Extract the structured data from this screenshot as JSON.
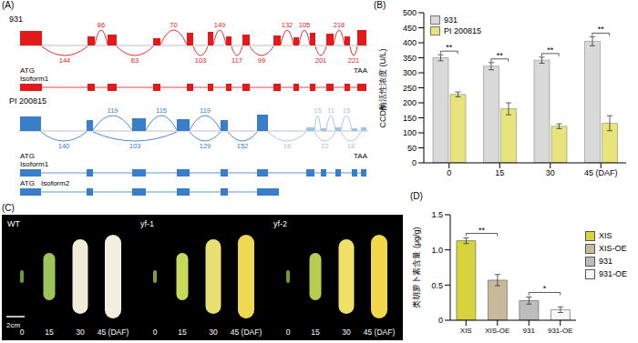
{
  "panel_labels": [
    "(A)",
    "(B)",
    "(C)",
    "(D)"
  ],
  "panel_A": {
    "tracks": [
      {
        "sample": "931",
        "color": "#e31a1c",
        "junctions": [
          {
            "label": 144,
            "side": "below"
          },
          {
            "label": 86,
            "side": "above"
          },
          {
            "label": 63,
            "side": "below"
          },
          {
            "label": 70,
            "side": "above"
          },
          {
            "label": 103,
            "side": "below"
          },
          {
            "label": 149,
            "side": "above"
          },
          {
            "label": 117,
            "side": "below"
          },
          {
            "label": 99,
            "side": "below"
          },
          {
            "label": 132,
            "side": "above"
          },
          {
            "label": 105,
            "side": "above"
          },
          {
            "label": 201,
            "side": "below"
          },
          {
            "label": 218,
            "side": "above"
          },
          {
            "label": 221,
            "side": "below"
          }
        ],
        "isoforms": [
          {
            "name": "Isoform1",
            "start": "ATG",
            "stop": "TAA"
          }
        ]
      },
      {
        "sample": "PI 200815",
        "color": "#3a7dc9",
        "minor_color": "#9fc3e8",
        "junctions": [
          {
            "label": 140,
            "side": "below"
          },
          {
            "label": 103,
            "side": "below"
          },
          {
            "label": 119,
            "side": "above"
          },
          {
            "label": 115,
            "side": "above"
          },
          {
            "label": 119,
            "side": "above"
          },
          {
            "label": 129,
            "side": "below"
          },
          {
            "label": 152,
            "side": "below"
          },
          {
            "label": 16,
            "side": "below",
            "color": "#9fc3e8"
          },
          {
            "label": 15,
            "side": "above",
            "color": "#9fc3e8"
          },
          {
            "label": 11,
            "side": "above",
            "color": "#9fc3e8"
          },
          {
            "label": 15,
            "side": "above",
            "color": "#9fc3e8"
          },
          {
            "label": 22,
            "side": "below",
            "color": "#9fc3e8"
          },
          {
            "label": 18,
            "side": "below",
            "color": "#9fc3e8"
          }
        ],
        "isoforms": [
          {
            "name": "Isoform1",
            "start": "ATG",
            "stop": "TAA"
          },
          {
            "name": "Isoform2",
            "start": "ATG"
          }
        ]
      }
    ]
  },
  "chart_data": [
    {
      "type": "bar",
      "y_label": "CCD酶活性浓度 (U/L)",
      "categories": [
        "0",
        "15",
        "30",
        "45 (DAF)"
      ],
      "series": [
        {
          "name": "931",
          "color": "#d9d9d9",
          "values": [
            350,
            322,
            342,
            405
          ],
          "errors": [
            10,
            12,
            10,
            15
          ]
        },
        {
          "name": "PI 200815",
          "color": "#e6e47a",
          "values": [
            228,
            180,
            122,
            132
          ],
          "errors": [
            8,
            20,
            8,
            25
          ]
        }
      ],
      "ylim": [
        0,
        500
      ],
      "yticks": [
        0,
        50,
        100,
        150,
        200,
        250,
        300,
        350,
        400,
        450,
        500
      ],
      "legend": "upper left",
      "annotations": [
        {
          "text": "**",
          "category": "0"
        },
        {
          "text": "**",
          "category": "15"
        },
        {
          "text": "**",
          "category": "30"
        },
        {
          "text": "**",
          "category": "45 (DAF)"
        }
      ]
    },
    {
      "type": "bar",
      "y_label": "类胡萝卜素含量 (μg/g)",
      "categories": [
        "XIS",
        "XIS-OE",
        "931",
        "931-OE"
      ],
      "values": [
        1.13,
        0.57,
        0.28,
        0.15
      ],
      "errors": [
        0.04,
        0.08,
        0.05,
        0.04
      ],
      "colors": [
        "#d8d23c",
        "#c9b99b",
        "#bdbdbd",
        "#f7f7f7"
      ],
      "ylim": [
        0,
        1.5
      ],
      "yticks": [
        0,
        0.5,
        {
          "value": 1,
          "label": "1.0"
        },
        1.5
      ],
      "legend": "right",
      "annotations": [
        {
          "text": "**",
          "from": "XIS",
          "to": "XIS-OE"
        },
        {
          "text": "*",
          "from": "931",
          "to": "931-OE"
        }
      ]
    }
  ],
  "panel_C": {
    "groups": [
      {
        "label": "WT",
        "colors": [
          "#6a9a3a",
          "#9bc45a",
          "#f0ecd8",
          "#f2efe0"
        ]
      },
      {
        "label": "yf-1",
        "colors": [
          "#7aa040",
          "#c8d85a",
          "#e8e070",
          "#f0d850"
        ]
      },
      {
        "label": "yf-2",
        "colors": [
          "#6e9a36",
          "#b8cc50",
          "#f0e068",
          "#f2d848"
        ]
      }
    ],
    "stages": [
      "0",
      "15",
      "30",
      "45 (DAF)"
    ],
    "scale_bar": "2cm"
  }
}
